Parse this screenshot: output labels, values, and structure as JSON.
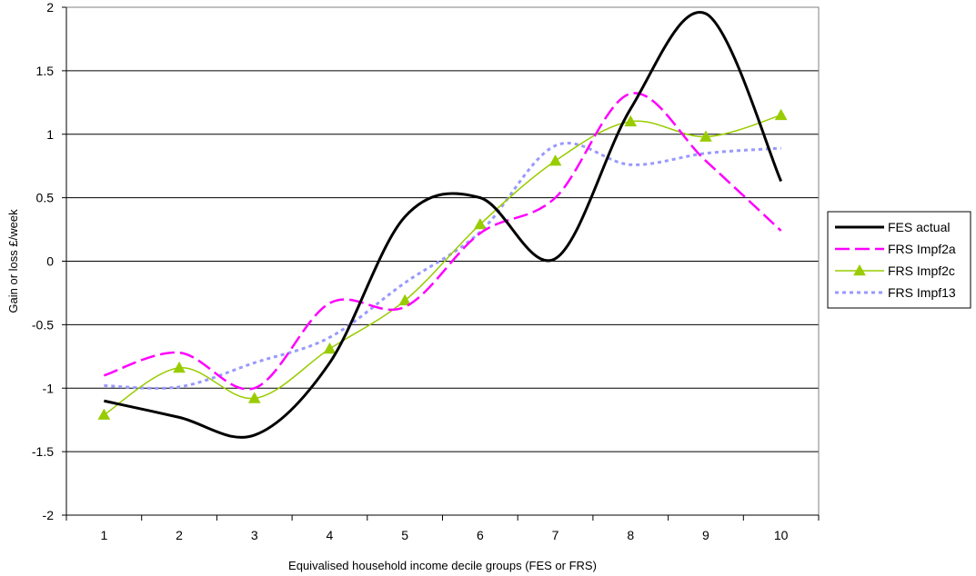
{
  "chart_data": {
    "type": "line",
    "title": "",
    "xlabel": "Equivalised household income decile groups (FES or FRS)",
    "ylabel": "Gain or loss £/week",
    "ylim": [
      -2,
      2
    ],
    "yticks": [
      -2,
      -1.5,
      -1,
      -0.5,
      0,
      0.5,
      1,
      1.5,
      2
    ],
    "ytick_labels": [
      "-2",
      "-1.5",
      "-1",
      "-0.5",
      "0",
      "0.5",
      "1",
      "1.5",
      "2"
    ],
    "categories": [
      "1",
      "2",
      "3",
      "4",
      "5",
      "6",
      "7",
      "8",
      "9",
      "10"
    ],
    "grid": "horizontal",
    "legend_position": "right",
    "series": [
      {
        "name": "FES actual",
        "color": "#000000",
        "style": "solid-thick",
        "marker": "none",
        "values": [
          -1.1,
          -1.23,
          -1.37,
          -0.8,
          0.35,
          0.5,
          0.02,
          1.2,
          1.95,
          0.63
        ]
      },
      {
        "name": "FRS Impf2a",
        "color": "#ff00ff",
        "style": "dashed",
        "marker": "none",
        "values": [
          -0.9,
          -0.72,
          -1.0,
          -0.33,
          -0.36,
          0.22,
          0.5,
          1.32,
          0.79,
          0.24
        ]
      },
      {
        "name": "FRS Impf2c",
        "color": "#99cc00",
        "style": "solid-thin",
        "marker": "triangle",
        "values": [
          -1.21,
          -0.84,
          -1.08,
          -0.69,
          -0.31,
          0.29,
          0.79,
          1.1,
          0.98,
          1.15
        ]
      },
      {
        "name": "FRS Impf13",
        "color": "#9999ff",
        "style": "dotted",
        "marker": "none",
        "values": [
          -0.98,
          -0.99,
          -0.8,
          -0.6,
          -0.17,
          0.23,
          0.91,
          0.76,
          0.85,
          0.89
        ]
      }
    ]
  }
}
